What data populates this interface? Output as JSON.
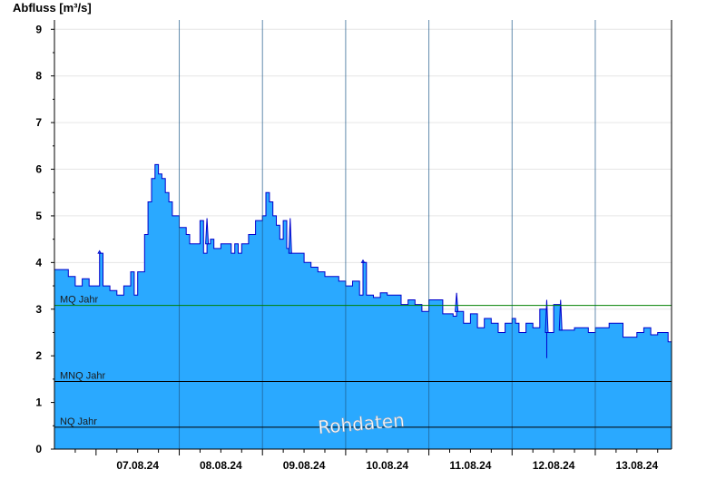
{
  "chart_data": {
    "type": "area",
    "ylabel": "Abfluss [m³/s]",
    "ylim": [
      0,
      9.2
    ],
    "yticks": [
      0,
      1,
      2,
      3,
      4,
      5,
      6,
      7,
      8,
      9
    ],
    "xlim": [
      "2024-08-06T12:00",
      "2024-08-13T22:00"
    ],
    "xtick_labels": [
      "07.08.24",
      "08.08.24",
      "09.08.24",
      "10.08.24",
      "11.08.24",
      "12.08.24",
      "13.08.24"
    ],
    "area_color": "#2aa9ff",
    "line_color": "#0000cc",
    "grid": true,
    "series": [
      {
        "x": [
          "2024-08-06T12:00",
          "2024-08-06T14:00",
          "2024-08-06T16:00",
          "2024-08-06T18:00",
          "2024-08-06T20:00",
          "2024-08-06T22:00",
          "2024-08-07T00:00",
          "2024-08-07T01:00",
          "2024-08-07T02:00",
          "2024-08-07T03:00",
          "2024-08-07T04:00",
          "2024-08-07T06:00",
          "2024-08-07T08:00",
          "2024-08-07T10:00",
          "2024-08-07T11:00",
          "2024-08-07T12:00",
          "2024-08-07T14:00",
          "2024-08-07T15:00",
          "2024-08-07T16:00",
          "2024-08-07T17:00",
          "2024-08-07T18:00",
          "2024-08-07T19:00",
          "2024-08-07T20:00",
          "2024-08-07T21:00",
          "2024-08-07T22:00",
          "2024-08-08T00:00",
          "2024-08-08T01:00",
          "2024-08-08T02:00",
          "2024-08-08T03:00",
          "2024-08-08T04:00",
          "2024-08-08T06:00",
          "2024-08-08T07:00",
          "2024-08-08T08:00",
          "2024-08-08T09:00",
          "2024-08-08T10:00",
          "2024-08-08T11:00",
          "2024-08-08T12:00",
          "2024-08-08T14:00",
          "2024-08-08T15:00",
          "2024-08-08T16:00",
          "2024-08-08T17:00",
          "2024-08-08T18:00",
          "2024-08-08T20:00",
          "2024-08-08T22:00",
          "2024-08-09T00:00",
          "2024-08-09T01:00",
          "2024-08-09T02:00",
          "2024-08-09T03:00",
          "2024-08-09T04:00",
          "2024-08-09T05:00",
          "2024-08-09T06:00",
          "2024-08-09T07:00",
          "2024-08-09T08:00",
          "2024-08-09T09:00",
          "2024-08-09T10:00",
          "2024-08-09T12:00",
          "2024-08-09T14:00",
          "2024-08-09T16:00",
          "2024-08-09T18:00",
          "2024-08-09T20:00",
          "2024-08-09T22:00",
          "2024-08-10T00:00",
          "2024-08-10T02:00",
          "2024-08-10T04:00",
          "2024-08-10T05:00",
          "2024-08-10T06:00",
          "2024-08-10T08:00",
          "2024-08-10T10:00",
          "2024-08-10T12:00",
          "2024-08-10T16:00",
          "2024-08-10T18:00",
          "2024-08-10T20:00",
          "2024-08-10T22:00",
          "2024-08-11T00:00",
          "2024-08-11T04:00",
          "2024-08-11T06:00",
          "2024-08-11T07:00",
          "2024-08-11T08:00",
          "2024-08-11T10:00",
          "2024-08-11T12:00",
          "2024-08-11T14:00",
          "2024-08-11T16:00",
          "2024-08-11T18:00",
          "2024-08-11T20:00",
          "2024-08-11T22:00",
          "2024-08-12T00:00",
          "2024-08-12T01:00",
          "2024-08-12T02:00",
          "2024-08-12T04:00",
          "2024-08-12T06:00",
          "2024-08-12T08:00",
          "2024-08-12T10:00",
          "2024-08-12T12:00",
          "2024-08-12T14:00",
          "2024-08-12T18:00",
          "2024-08-12T20:00",
          "2024-08-12T22:00",
          "2024-08-13T00:00",
          "2024-08-13T04:00",
          "2024-08-13T08:00",
          "2024-08-13T12:00",
          "2024-08-13T14:00",
          "2024-08-13T16:00",
          "2024-08-13T18:00",
          "2024-08-13T20:00",
          "2024-08-13T21:00",
          "2024-08-13T22:00"
        ],
        "y": [
          3.85,
          3.85,
          3.7,
          3.5,
          3.65,
          3.5,
          3.5,
          4.2,
          3.5,
          3.5,
          3.4,
          3.3,
          3.5,
          3.8,
          3.3,
          3.8,
          4.6,
          5.3,
          5.8,
          6.1,
          5.9,
          5.8,
          5.5,
          5.3,
          5.0,
          4.75,
          4.75,
          4.6,
          4.4,
          4.4,
          4.9,
          4.2,
          4.4,
          4.5,
          4.3,
          4.3,
          4.4,
          4.4,
          4.2,
          4.4,
          4.2,
          4.4,
          4.6,
          4.9,
          5.0,
          5.5,
          5.3,
          5.0,
          4.8,
          4.5,
          4.9,
          4.3,
          4.2,
          4.2,
          4.2,
          4.0,
          3.9,
          3.8,
          3.7,
          3.7,
          3.6,
          3.5,
          3.6,
          3.3,
          4.0,
          3.3,
          3.25,
          3.35,
          3.3,
          3.1,
          3.2,
          3.1,
          2.95,
          3.2,
          2.9,
          2.9,
          2.85,
          2.95,
          2.7,
          2.9,
          2.6,
          2.8,
          2.7,
          2.5,
          2.7,
          2.8,
          2.7,
          2.5,
          2.7,
          2.6,
          3.0,
          2.5,
          3.1,
          2.55,
          2.6,
          2.6,
          2.5,
          2.6,
          2.7,
          2.4,
          2.5,
          2.6,
          2.45,
          2.5,
          2.5,
          2.3,
          2.9
        ]
      }
    ],
    "spikes": [
      {
        "x": "2024-08-07T01:00",
        "y": 4.25
      },
      {
        "x": "2024-08-08T08:00",
        "y": 4.95
      },
      {
        "x": "2024-08-09T08:00",
        "y": 4.95
      },
      {
        "x": "2024-08-10T05:00",
        "y": 4.05
      },
      {
        "x": "2024-08-11T08:00",
        "y": 3.35
      },
      {
        "x": "2024-08-12T10:00",
        "y": 3.2
      },
      {
        "x": "2024-08-12T14:00",
        "y": 3.2
      },
      {
        "x": "2024-08-12T10:00",
        "y": 1.95
      }
    ],
    "reference_lines": [
      {
        "label": "MQ Jahr",
        "value": 3.08,
        "color": "#008000"
      },
      {
        "label": "MNQ Jahr",
        "value": 1.45,
        "color": "#000000"
      },
      {
        "label": "NQ Jahr",
        "value": 0.47,
        "color": "#000000"
      }
    ],
    "annotation": "Rohdaten"
  }
}
